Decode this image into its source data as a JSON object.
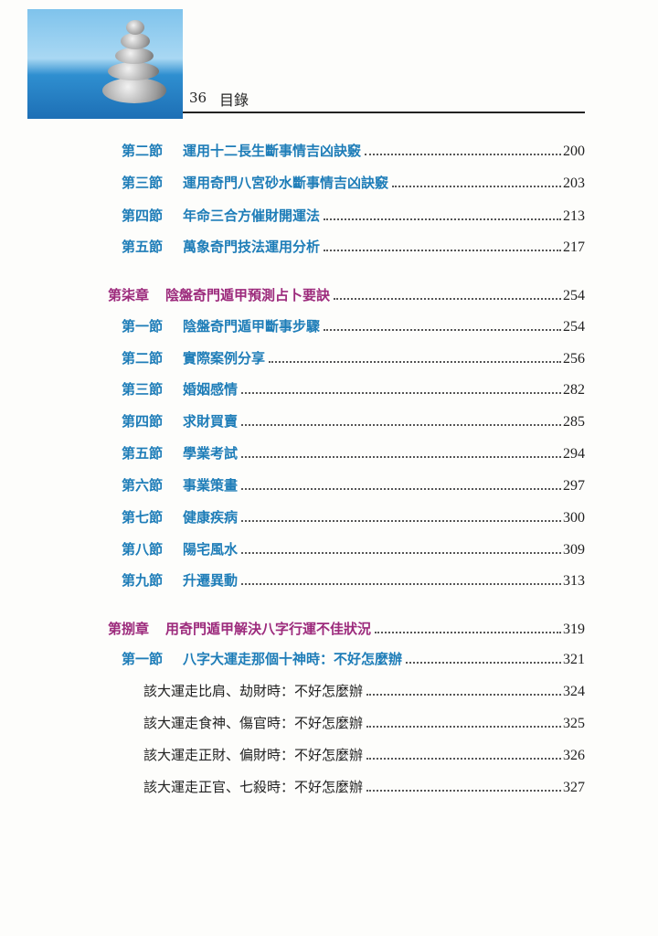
{
  "header": {
    "page_number": "36",
    "title": "目錄"
  },
  "colors": {
    "section": "#1e7db8",
    "chapter": "#9c2a7c",
    "text": "#222222"
  },
  "entries": [
    {
      "type": "sec",
      "label": "第二節",
      "title": "運用十二長生斷事情吉凶訣竅",
      "page": "200"
    },
    {
      "type": "sec",
      "label": "第三節",
      "title": "運用奇門八宮砂水斷事情吉凶訣竅",
      "page": "203"
    },
    {
      "type": "sec",
      "label": "第四節",
      "title": "年命三合方催財開運法",
      "page": "213"
    },
    {
      "type": "sec",
      "label": "第五節",
      "title": "萬象奇門技法運用分析",
      "page": "217"
    },
    {
      "type": "chap",
      "label": "第柒章",
      "title": "陰盤奇門遁甲預測占卜要訣",
      "page": "254"
    },
    {
      "type": "sec",
      "label": "第一節",
      "title": "陰盤奇門遁甲斷事步驟",
      "page": "254"
    },
    {
      "type": "sec",
      "label": "第二節",
      "title": "實際案例分享",
      "page": "256"
    },
    {
      "type": "sec",
      "label": "第三節",
      "title": "婚姻感情",
      "page": "282"
    },
    {
      "type": "sec",
      "label": "第四節",
      "title": "求財買賣",
      "page": "285"
    },
    {
      "type": "sec",
      "label": "第五節",
      "title": "學業考試",
      "page": "294"
    },
    {
      "type": "sec",
      "label": "第六節",
      "title": "事業策畫",
      "page": "297"
    },
    {
      "type": "sec",
      "label": "第七節",
      "title": "健康疾病",
      "page": "300"
    },
    {
      "type": "sec",
      "label": "第八節",
      "title": "陽宅風水",
      "page": "309"
    },
    {
      "type": "sec",
      "label": "第九節",
      "title": "升遷異動",
      "page": "313"
    },
    {
      "type": "chap",
      "label": "第捌章",
      "title": "用奇門遁甲解決八字行運不佳狀況",
      "page": "319"
    },
    {
      "type": "sec",
      "label": "第一節",
      "title": "八字大運走那個十神時：不好怎麼辦",
      "page": "321"
    },
    {
      "type": "sub",
      "label": "",
      "title": "該大運走比肩、劫財時：不好怎麼辦",
      "page": "324"
    },
    {
      "type": "sub",
      "label": "",
      "title": "該大運走食神、傷官時：不好怎麼辦",
      "page": "325"
    },
    {
      "type": "sub",
      "label": "",
      "title": "該大運走正財、偏財時：不好怎麼辦",
      "page": "326"
    },
    {
      "type": "sub",
      "label": "",
      "title": "該大運走正官、七殺時：不好怎麼辦",
      "page": "327"
    }
  ]
}
